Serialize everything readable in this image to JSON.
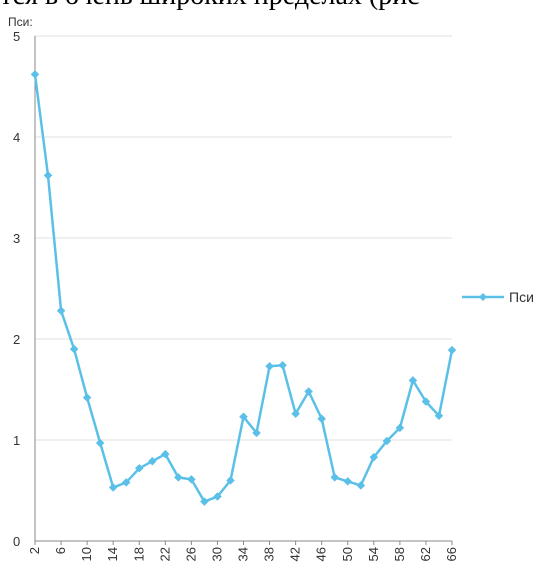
{
  "page": {
    "heading_fragment": "тся в очень широких пределах (рис"
  },
  "chart_data": {
    "type": "line",
    "title": "",
    "ylabel": "Пси:",
    "xlabel": "",
    "ylim": [
      0,
      5
    ],
    "y_ticks": [
      0,
      1,
      2,
      3,
      4,
      5
    ],
    "x_tick_labels": [
      "2",
      "6",
      "10",
      "14",
      "18",
      "22",
      "26",
      "30",
      "34",
      "38",
      "42",
      "46",
      "50",
      "54",
      "58",
      "62",
      "66"
    ],
    "grid": "horizontal",
    "legend_position": "right",
    "series_color": "#5bc0e8",
    "series": [
      {
        "name": "Пси",
        "x": [
          2,
          4,
          6,
          8,
          10,
          12,
          14,
          16,
          18,
          20,
          22,
          24,
          26,
          28,
          30,
          32,
          34,
          36,
          38,
          40,
          42,
          44,
          46,
          48,
          50,
          52,
          54,
          56,
          58,
          60,
          62,
          64,
          66
        ],
        "values": [
          4.62,
          3.62,
          2.28,
          1.9,
          1.42,
          0.97,
          0.53,
          0.58,
          0.72,
          0.79,
          0.86,
          0.63,
          0.61,
          0.39,
          0.44,
          0.6,
          1.23,
          1.07,
          1.73,
          1.74,
          1.26,
          1.48,
          1.21,
          0.63,
          0.59,
          0.55,
          0.83,
          0.99,
          1.12,
          1.59,
          1.38,
          1.24,
          1.89
        ]
      }
    ]
  }
}
